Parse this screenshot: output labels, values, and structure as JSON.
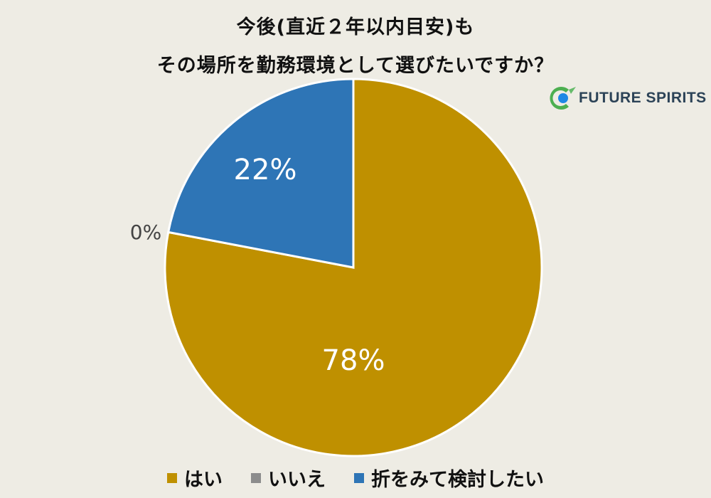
{
  "title_line1": "今後(直近２年以内目安)も",
  "title_line2": "その場所を勤務環境として選びたいですか？",
  "logo": {
    "text": "FUTURE SPIRITS",
    "icon": "future-spirits-logo-icon"
  },
  "chart_data": {
    "type": "pie",
    "title": "今後(直近２年以内目安)も その場所を勤務環境として選びたいですか？",
    "start": "top, clockwise",
    "slices": [
      {
        "label": "はい",
        "value": 78,
        "value_label": "78%",
        "color": "#bf9000"
      },
      {
        "label": "いいえ",
        "value": 0,
        "value_label": "0%",
        "color": "#8c8c8c"
      },
      {
        "label": "折をみて検討したい",
        "value": 22,
        "value_label": "22%",
        "color": "#2e75b6"
      }
    ],
    "legend_position": "bottom"
  }
}
